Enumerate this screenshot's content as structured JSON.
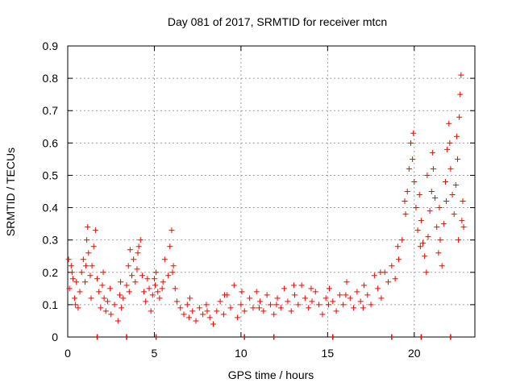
{
  "chart_data": {
    "type": "scatter",
    "title": "Day 081 of 2017, SRMTID for receiver mtcn",
    "xlabel": "GPS time / hours",
    "ylabel": "SRMTID / TECUs",
    "xlim": [
      0,
      23.5
    ],
    "ylim": [
      0,
      0.9
    ],
    "x_ticks": [
      0,
      5,
      10,
      15,
      20
    ],
    "x_tick_labels": [
      "0",
      "5",
      "10",
      "15",
      "20"
    ],
    "y_ticks": [
      0,
      0.1,
      0.2,
      0.3,
      0.4,
      0.5,
      0.6,
      0.7,
      0.8,
      0.9
    ],
    "y_tick_labels": [
      "0",
      "0.1",
      "0.2",
      "0.3",
      "0.4",
      "0.5",
      "0.6",
      "0.7",
      "0.8",
      "0.9"
    ],
    "grid": true,
    "marker": "+",
    "color": "#ff0000",
    "series": [
      {
        "name": "mtcn",
        "points": [
          [
            0.1,
            0.15
          ],
          [
            0.2,
            0.22
          ],
          [
            0.3,
            0.18
          ],
          [
            0.4,
            0.12
          ],
          [
            0.5,
            0.17
          ],
          [
            0.6,
            0.09
          ],
          [
            0.7,
            0.14
          ],
          [
            0.8,
            0.2
          ],
          [
            0.9,
            0.24
          ],
          [
            1.0,
            0.17
          ],
          [
            1.1,
            0.3
          ],
          [
            1.15,
            0.34
          ],
          [
            1.2,
            0.26
          ],
          [
            1.3,
            0.19
          ],
          [
            1.4,
            0.22
          ],
          [
            1.5,
            0.28
          ],
          [
            1.6,
            0.33
          ],
          [
            1.7,
            0.18
          ],
          [
            1.8,
            0.14
          ],
          [
            1.9,
            0.09
          ],
          [
            2.0,
            0.16
          ],
          [
            2.1,
            0.12
          ],
          [
            2.2,
            0.08
          ],
          [
            2.3,
            0.11
          ],
          [
            2.5,
            0.07
          ],
          [
            2.7,
            0.1
          ],
          [
            2.9,
            0.05
          ],
          [
            3.0,
            0.13
          ],
          [
            3.1,
            0.09
          ],
          [
            3.2,
            0.12
          ],
          [
            3.4,
            0.16
          ],
          [
            3.5,
            0.22
          ],
          [
            3.6,
            0.27
          ],
          [
            3.7,
            0.19
          ],
          [
            3.8,
            0.24
          ],
          [
            3.9,
            0.17
          ],
          [
            4.0,
            0.21
          ],
          [
            4.1,
            0.28
          ],
          [
            4.2,
            0.3
          ],
          [
            4.3,
            0.19
          ],
          [
            4.4,
            0.14
          ],
          [
            4.5,
            0.11
          ],
          [
            4.6,
            0.18
          ],
          [
            4.7,
            0.15
          ],
          [
            4.8,
            0.08
          ],
          [
            4.9,
            0.13
          ],
          [
            5.0,
            0.18
          ],
          [
            5.1,
            0.2
          ],
          [
            5.2,
            0.14
          ],
          [
            5.3,
            0.12
          ],
          [
            5.5,
            0.17
          ],
          [
            5.6,
            0.24
          ],
          [
            5.8,
            0.19
          ],
          [
            5.9,
            0.28
          ],
          [
            6.0,
            0.33
          ],
          [
            6.1,
            0.22
          ],
          [
            6.2,
            0.15
          ],
          [
            6.3,
            0.11
          ],
          [
            6.5,
            0.09
          ],
          [
            6.7,
            0.07
          ],
          [
            6.9,
            0.1
          ],
          [
            7.0,
            0.06
          ],
          [
            7.2,
            0.08
          ],
          [
            7.4,
            0.05
          ],
          [
            7.6,
            0.09
          ],
          [
            7.8,
            0.07
          ],
          [
            8.0,
            0.1
          ],
          [
            8.2,
            0.06
          ],
          [
            8.4,
            0.04
          ],
          [
            8.6,
            0.08
          ],
          [
            8.8,
            0.11
          ],
          [
            9.0,
            0.07
          ],
          [
            9.2,
            0.13
          ],
          [
            9.4,
            0.09
          ],
          [
            9.6,
            0.16
          ],
          [
            9.8,
            0.06
          ],
          [
            10.0,
            0.1
          ],
          [
            10.2,
            0.08
          ],
          [
            10.5,
            0.12
          ],
          [
            10.7,
            0.09
          ],
          [
            10.9,
            0.14
          ],
          [
            11.1,
            0.11
          ],
          [
            11.3,
            0.08
          ],
          [
            11.5,
            0.13
          ],
          [
            11.7,
            0.1
          ],
          [
            11.9,
            0.07
          ],
          [
            12.1,
            0.12
          ],
          [
            12.3,
            0.09
          ],
          [
            12.5,
            0.15
          ],
          [
            12.7,
            0.11
          ],
          [
            12.9,
            0.08
          ],
          [
            13.1,
            0.13
          ],
          [
            13.3,
            0.1
          ],
          [
            13.5,
            0.16
          ],
          [
            13.7,
            0.12
          ],
          [
            13.9,
            0.09
          ],
          [
            14.1,
            0.11
          ],
          [
            14.3,
            0.14
          ],
          [
            14.5,
            0.1
          ],
          [
            14.7,
            0.07
          ],
          [
            14.9,
            0.12
          ],
          [
            15.1,
            0.15
          ],
          [
            15.3,
            0.11
          ],
          [
            15.5,
            0.08
          ],
          [
            15.7,
            0.13
          ],
          [
            15.9,
            0.1
          ],
          [
            16.1,
            0.17
          ],
          [
            16.3,
            0.12
          ],
          [
            16.5,
            0.09
          ],
          [
            16.7,
            0.14
          ],
          [
            16.9,
            0.11
          ],
          [
            17.1,
            0.16
          ],
          [
            17.3,
            0.13
          ],
          [
            17.5,
            0.1
          ],
          [
            17.7,
            0.19
          ],
          [
            17.9,
            0.15
          ],
          [
            18.1,
            0.12
          ],
          [
            18.3,
            0.2
          ],
          [
            18.5,
            0.17
          ],
          [
            18.7,
            0.22
          ],
          [
            18.9,
            0.18
          ],
          [
            19.1,
            0.24
          ],
          [
            19.3,
            0.3
          ],
          [
            19.5,
            0.38
          ],
          [
            19.6,
            0.45
          ],
          [
            19.7,
            0.52
          ],
          [
            19.8,
            0.6
          ],
          [
            19.9,
            0.55
          ],
          [
            20.0,
            0.48
          ],
          [
            20.1,
            0.4
          ],
          [
            20.2,
            0.33
          ],
          [
            20.3,
            0.44
          ],
          [
            20.4,
            0.36
          ],
          [
            20.5,
            0.29
          ],
          [
            20.6,
            0.25
          ],
          [
            20.7,
            0.2
          ],
          [
            20.8,
            0.31
          ],
          [
            20.9,
            0.39
          ],
          [
            21.0,
            0.45
          ],
          [
            21.1,
            0.52
          ],
          [
            21.2,
            0.43
          ],
          [
            21.3,
            0.34
          ],
          [
            21.4,
            0.26
          ],
          [
            21.5,
            0.3
          ],
          [
            21.6,
            0.22
          ],
          [
            21.7,
            0.35
          ],
          [
            21.8,
            0.48
          ],
          [
            21.9,
            0.58
          ],
          [
            22.0,
            0.66
          ],
          [
            22.1,
            0.52
          ],
          [
            22.2,
            0.44
          ],
          [
            22.3,
            0.38
          ],
          [
            22.4,
            0.47
          ],
          [
            22.5,
            0.55
          ],
          [
            22.6,
            0.68
          ],
          [
            22.65,
            0.75
          ],
          [
            22.7,
            0.81
          ],
          [
            22.75,
            0.36
          ],
          [
            22.8,
            0.42
          ],
          [
            22.85,
            0.34
          ],
          [
            0.05,
            0.24
          ],
          [
            0.25,
            0.2
          ],
          [
            0.45,
            0.1
          ],
          [
            1.05,
            0.22
          ],
          [
            1.35,
            0.12
          ],
          [
            2.05,
            0.2
          ],
          [
            2.45,
            0.15
          ],
          [
            3.05,
            0.17
          ],
          [
            3.55,
            0.14
          ],
          [
            4.05,
            0.26
          ],
          [
            5.05,
            0.16
          ],
          [
            5.45,
            0.15
          ],
          [
            6.05,
            0.2
          ],
          [
            7.05,
            0.12
          ],
          [
            8.05,
            0.08
          ],
          [
            9.05,
            0.13
          ],
          [
            10.05,
            0.14
          ],
          [
            11.05,
            0.09
          ],
          [
            12.05,
            0.1
          ],
          [
            13.05,
            0.16
          ],
          [
            14.05,
            0.15
          ],
          [
            15.05,
            0.1
          ],
          [
            16.05,
            0.13
          ],
          [
            17.05,
            0.09
          ],
          [
            18.05,
            0.2
          ],
          [
            19.05,
            0.28
          ],
          [
            19.45,
            0.42
          ],
          [
            19.95,
            0.63
          ],
          [
            20.35,
            0.28
          ],
          [
            20.75,
            0.5
          ],
          [
            21.05,
            0.57
          ],
          [
            21.45,
            0.4
          ],
          [
            21.85,
            0.42
          ],
          [
            22.05,
            0.6
          ],
          [
            22.45,
            0.62
          ],
          [
            22.55,
            0.3
          ]
        ]
      }
    ]
  }
}
